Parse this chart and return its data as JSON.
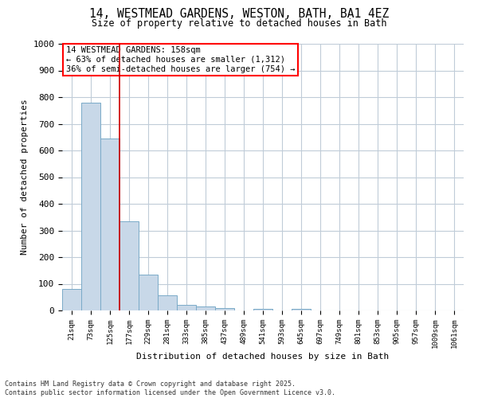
{
  "title_line1": "14, WESTMEAD GARDENS, WESTON, BATH, BA1 4EZ",
  "title_line2": "Size of property relative to detached houses in Bath",
  "xlabel": "Distribution of detached houses by size in Bath",
  "ylabel": "Number of detached properties",
  "bar_color": "#c8d8e8",
  "bar_edge_color": "#7aaac8",
  "categories": [
    "21sqm",
    "73sqm",
    "125sqm",
    "177sqm",
    "229sqm",
    "281sqm",
    "333sqm",
    "385sqm",
    "437sqm",
    "489sqm",
    "541sqm",
    "593sqm",
    "645sqm",
    "697sqm",
    "749sqm",
    "801sqm",
    "853sqm",
    "905sqm",
    "957sqm",
    "1009sqm",
    "1061sqm"
  ],
  "values": [
    80,
    780,
    645,
    335,
    133,
    57,
    22,
    16,
    10,
    0,
    6,
    0,
    5,
    0,
    0,
    0,
    0,
    0,
    0,
    0,
    0
  ],
  "annotation_title": "14 WESTMEAD GARDENS: 158sqm",
  "annotation_line1": "← 63% of detached houses are smaller (1,312)",
  "annotation_line2": "36% of semi-detached houses are larger (754) →",
  "red_line_x": 2.5,
  "ylim": [
    0,
    1000
  ],
  "yticks": [
    0,
    100,
    200,
    300,
    400,
    500,
    600,
    700,
    800,
    900,
    1000
  ],
  "footer_line1": "Contains HM Land Registry data © Crown copyright and database right 2025.",
  "footer_line2": "Contains public sector information licensed under the Open Government Licence v3.0.",
  "background_color": "#ffffff",
  "grid_color": "#c0ccd8"
}
